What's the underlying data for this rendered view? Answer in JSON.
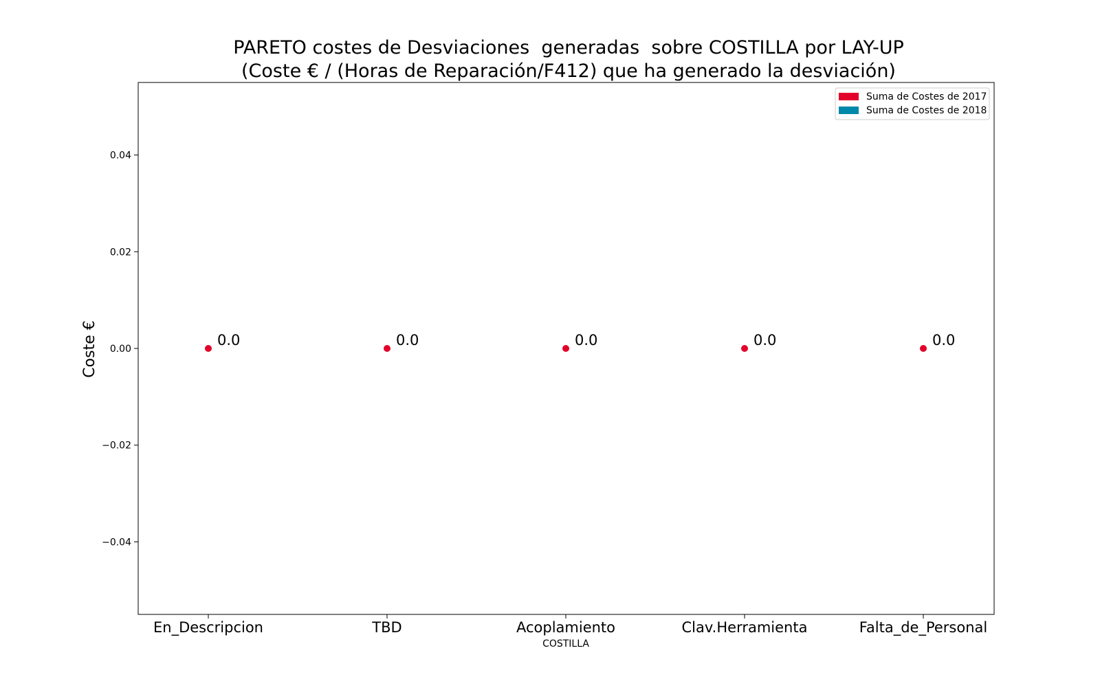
{
  "chart_data": {
    "type": "scatter",
    "title_line1": "PARETO costes de Desviaciones  generadas  sobre COSTILLA por LAY-UP",
    "title_line2": "(Coste € / (Horas de Reparación/F412) que ha generado la desviación)",
    "xlabel": "COSTILLA",
    "ylabel": "Coste €",
    "categories": [
      "En_Descripcion",
      "TBD",
      "Acoplamiento",
      "Clav.Herramienta",
      "Falta_de_Personal"
    ],
    "series": [
      {
        "name": "Suma de Costes de 2017",
        "color": "#e3002b",
        "values": [
          0.0,
          0.0,
          0.0,
          0.0,
          0.0
        ],
        "labels": [
          "0.0",
          "0.0",
          "0.0",
          "0.0",
          "0.0"
        ]
      }
    ],
    "legend": {
      "position": "top-right",
      "entries": [
        {
          "label": "Suma de Costes de 2017",
          "color": "#e3002b"
        },
        {
          "label": "Suma de Costes de 2018",
          "color": "#0088aa"
        }
      ]
    },
    "ylim": [
      -0.055,
      0.055
    ],
    "yticks": [
      0.04,
      0.02,
      0.0,
      -0.02,
      -0.04
    ],
    "ytick_labels": [
      "0.04",
      "0.02",
      "0.00",
      "−0.02",
      "−0.04"
    ],
    "grid": false
  }
}
